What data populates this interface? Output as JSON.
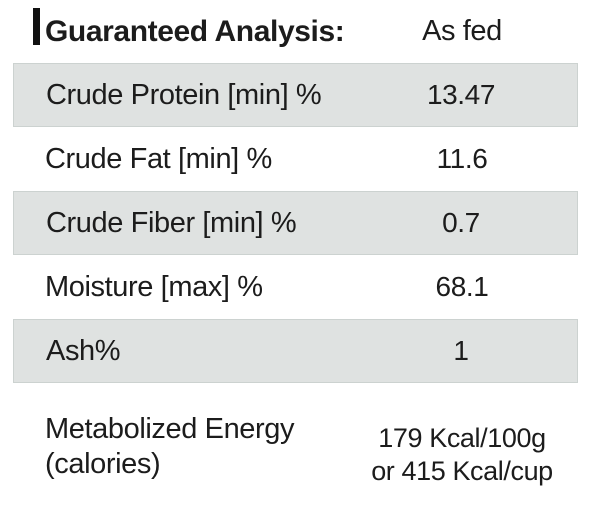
{
  "page": {
    "background": "#ffffff",
    "text_color": "#1c1c1c",
    "shaded_row_bg": "#dfe2e1",
    "shaded_row_border": "#ccd2d0"
  },
  "table": {
    "header": {
      "title": "Guaranteed Analysis:",
      "column_label": "As fed"
    },
    "rows": [
      {
        "label": "Crude Protein [min] %",
        "value": "13.47"
      },
      {
        "label": "Crude Fat [min] %",
        "value": "11.6"
      },
      {
        "label": "Crude Fiber [min] %",
        "value": "0.7"
      },
      {
        "label": "Moisture [max] %",
        "value": "68.1"
      },
      {
        "label": "Ash%",
        "value": "1"
      },
      {
        "label_lines": [
          "Metabolized Energy",
          "(calories)"
        ],
        "value_lines": [
          "179 Kcal/100g",
          "or 415 Kcal/cup"
        ]
      }
    ]
  }
}
